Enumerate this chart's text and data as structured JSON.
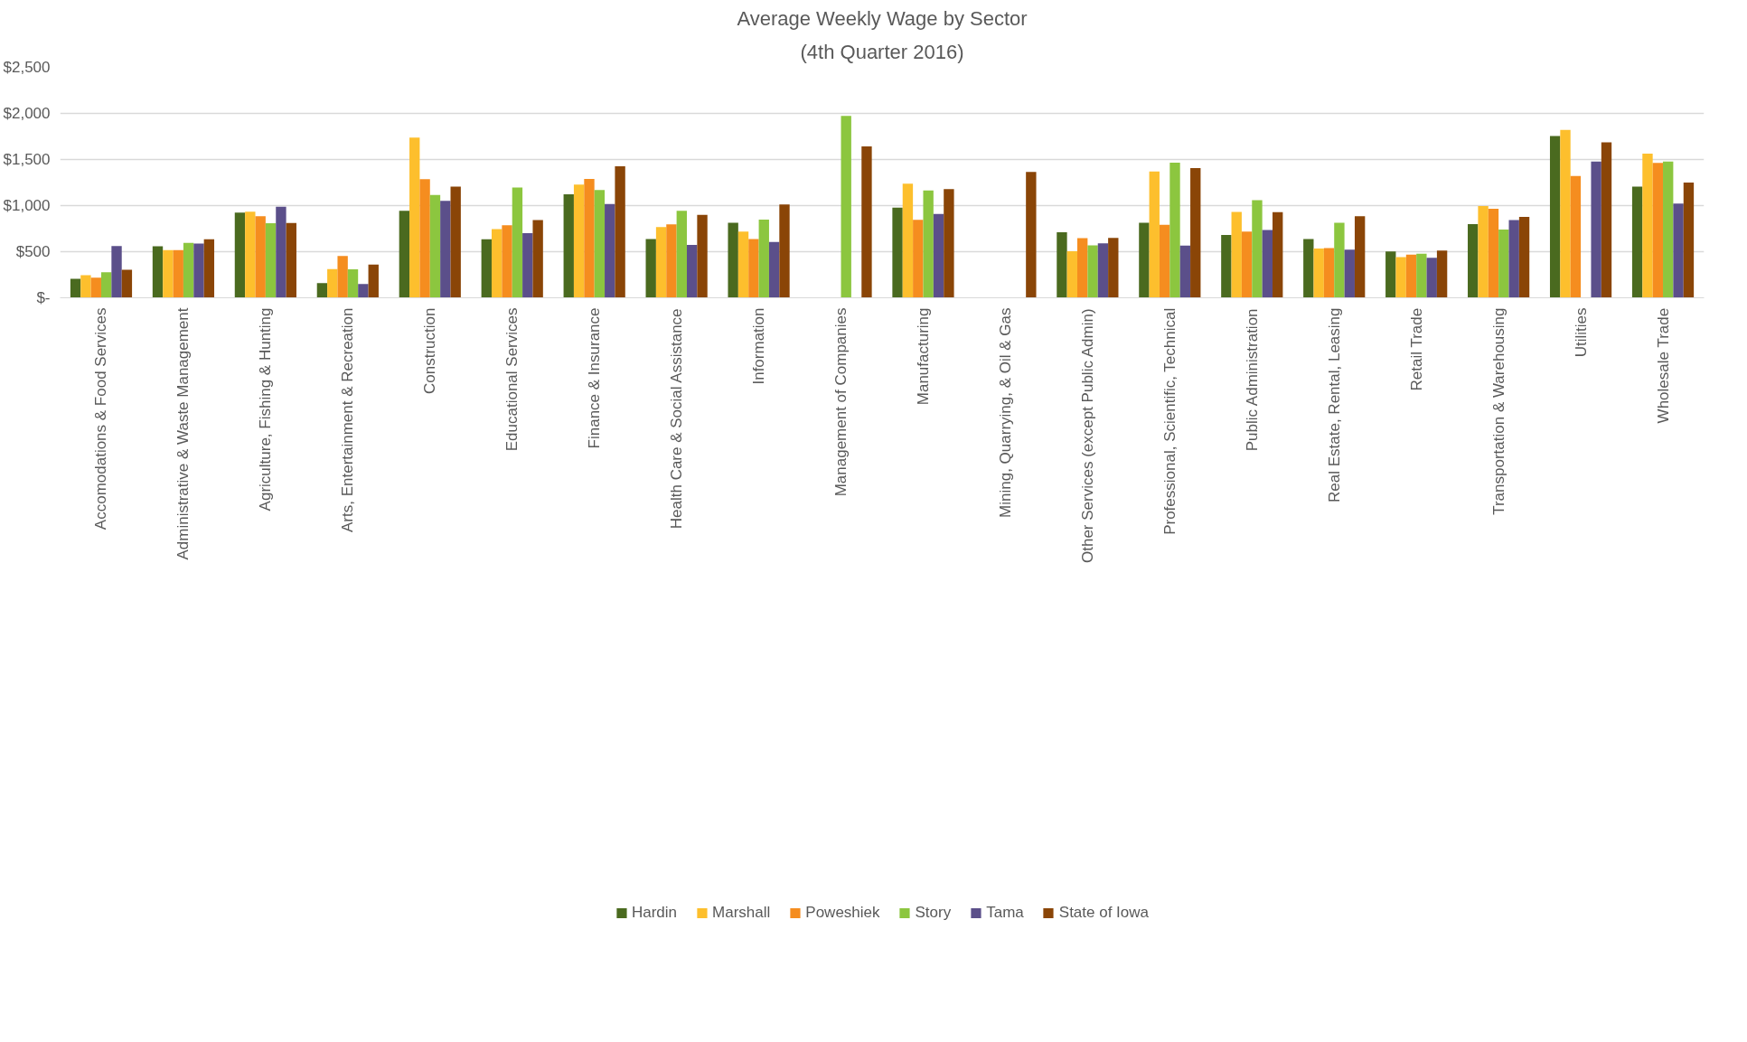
{
  "chart_data": {
    "type": "bar",
    "title": "Average Weekly Wage by Sector",
    "subtitle": "(4th Quarter 2016)",
    "categories": [
      "Accomodations & Food Services",
      "Administrative & Waste Management",
      "Agriculture, Fishing & Hunting",
      "Arts, Entertainment & Recreation",
      "Construction",
      "Educational Services",
      "Finance & Insurance",
      "Health Care & Social Assistance",
      "Information",
      "Management of Companies",
      "Manufacturing",
      "Mining, Quarrying, & Oil & Gas",
      "Other Services (except Public Admin)",
      "Professional, Scientific, Technical",
      "Public Administration",
      "Real Estate, Rental, Leasing",
      "Retail Trade",
      "Transportation & Warehousing",
      "Utilities",
      "Wholesale Trade"
    ],
    "series": [
      {
        "name": "Hardin",
        "color": "#4a6a1f",
        "values": [
          205,
          560,
          924,
          160,
          944,
          635,
          1123,
          637,
          814,
          null,
          977,
          null,
          710,
          814,
          681,
          637,
          502,
          798,
          1756,
          1205
        ]
      },
      {
        "name": "Marshall",
        "color": "#fdbf2d",
        "values": [
          246,
          517,
          935,
          312,
          1737,
          744,
          1228,
          767,
          717,
          null,
          1237,
          null,
          505,
          1370,
          931,
          535,
          442,
          996,
          1822,
          1563
        ]
      },
      {
        "name": "Poweshiek",
        "color": "#f58d1f",
        "values": [
          218,
          516,
          886,
          453,
          1286,
          786,
          1289,
          796,
          637,
          null,
          845,
          null,
          647,
          791,
          719,
          538,
          468,
          966,
          1321,
          1463
        ]
      },
      {
        "name": "Story",
        "color": "#8cc63f",
        "values": [
          277,
          596,
          810,
          309,
          1116,
          1196,
          1168,
          944,
          849,
          1972,
          1163,
          null,
          568,
          1465,
          1058,
          814,
          477,
          740,
          null,
          1477
        ]
      },
      {
        "name": "Tama",
        "color": "#5b4f8a",
        "values": [
          561,
          588,
          988,
          149,
          1051,
          700,
          1017,
          574,
          605,
          null,
          910,
          null,
          591,
          567,
          735,
          523,
          433,
          842,
          1477,
          1021
        ]
      },
      {
        "name": "State of Iowa",
        "color": "#8a4507",
        "values": [
          303,
          635,
          812,
          361,
          1207,
          842,
          1426,
          900,
          1012,
          1642,
          1180,
          1365,
          649,
          1408,
          930,
          884,
          512,
          877,
          1686,
          1249
        ]
      }
    ],
    "ylim": [
      0,
      2500
    ],
    "yticks": [
      {
        "value": 0,
        "label": "$-"
      },
      {
        "value": 500,
        "label": "$500"
      },
      {
        "value": 1000,
        "label": "$1,000"
      },
      {
        "value": 1500,
        "label": "$1,500"
      },
      {
        "value": 2000,
        "label": "$2,000"
      },
      {
        "value": 2500,
        "label": "$2,500"
      }
    ],
    "grid": "y",
    "legend": "bottom"
  }
}
